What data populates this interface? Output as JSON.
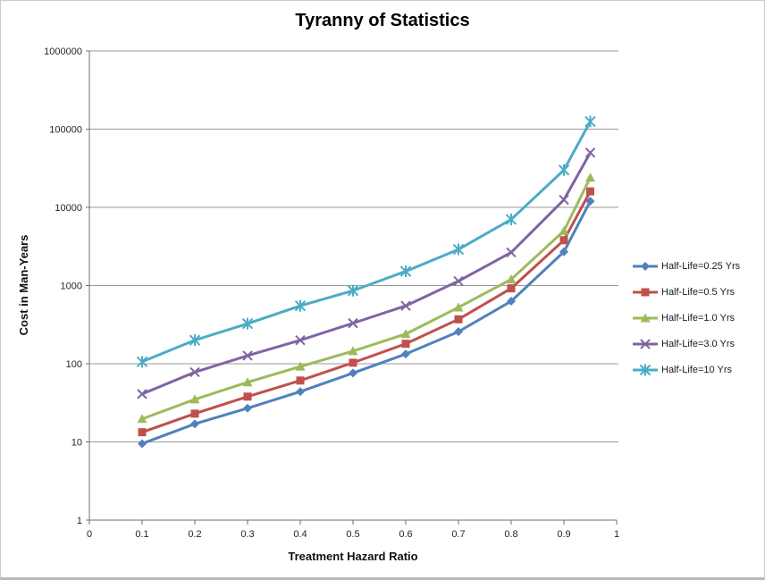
{
  "frame": {
    "background": "#ffffff",
    "border_color": "#cbcbcb"
  },
  "colors": {
    "gridline": "#9a9a9a",
    "axis": "#6f6f6f",
    "tick_label": "#262626"
  },
  "chart_data": {
    "type": "line",
    "title": "Tyranny of Statistics",
    "xlabel": "Treatment Hazard Ratio",
    "ylabel": "Cost in Man-Years",
    "y_scale": "log",
    "xlim": [
      0,
      1
    ],
    "ylim": [
      1,
      1000000
    ],
    "grid": "horizontal-major",
    "legend_position": "right",
    "x_tick_values": [
      0,
      0.1,
      0.2,
      0.3,
      0.4,
      0.5,
      0.6,
      0.7,
      0.8,
      0.9,
      1
    ],
    "x_tick_labels": [
      "0",
      "0.1",
      "0.2",
      "0.3",
      "0.4",
      "0.5",
      "0.6",
      "0.7",
      "0.8",
      "0.9",
      "1"
    ],
    "y_tick_values": [
      1,
      10,
      100,
      1000,
      10000,
      100000,
      1000000
    ],
    "y_tick_labels": [
      "1",
      "10",
      "100",
      "1000",
      "10000",
      "100000",
      "1000000"
    ],
    "x": [
      0.1,
      0.2,
      0.3,
      0.4,
      0.5,
      0.6,
      0.7,
      0.8,
      0.9,
      0.95
    ],
    "series": [
      {
        "name": "Half-Life=0.25 Yrs",
        "color": "#4F81BD",
        "marker": "diamond",
        "values": [
          9.5,
          17,
          27,
          44,
          76,
          133,
          257,
          630,
          2700,
          12000
        ]
      },
      {
        "name": "Half-Life=0.5 Yrs",
        "color": "#C0504D",
        "marker": "square",
        "values": [
          13.3,
          23,
          38,
          61,
          103,
          180,
          370,
          920,
          3800,
          16000
        ]
      },
      {
        "name": "Half-Life=1.0 Yrs",
        "color": "#9BBB59",
        "marker": "triangle",
        "values": [
          19.7,
          35,
          58,
          92,
          145,
          240,
          525,
          1200,
          5000,
          24000
        ]
      },
      {
        "name": "Half-Life=3.0 Yrs",
        "color": "#8064A2",
        "marker": "x",
        "values": [
          41,
          78,
          127,
          200,
          330,
          550,
          1140,
          2650,
          12500,
          50000
        ]
      },
      {
        "name": "Half-Life=10 Yrs",
        "color": "#4BACC6",
        "marker": "asterisk",
        "values": [
          106,
          200,
          325,
          550,
          860,
          1520,
          2900,
          7000,
          30000,
          125000
        ]
      }
    ]
  }
}
